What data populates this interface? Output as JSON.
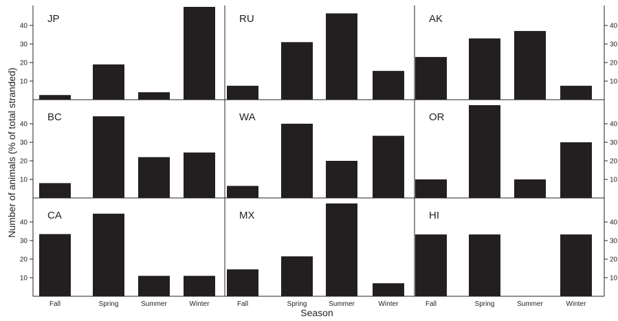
{
  "chart_data": {
    "type": "bar",
    "layout": "3x3 small multiples with shared axes",
    "xlabel": "Season",
    "ylabel": "Number of animals (% of total stranded)",
    "categories": [
      "Fall",
      "Spring",
      "Summer",
      "Winter"
    ],
    "ylim": [
      0,
      50
    ],
    "yticks": [
      10,
      20,
      30,
      40
    ],
    "grid": false,
    "bar_color": "#231f20",
    "series": [
      {
        "name": "JP",
        "values": [
          2.5,
          19,
          4,
          50
        ]
      },
      {
        "name": "RU",
        "values": [
          7.5,
          31,
          46.5,
          15.5
        ]
      },
      {
        "name": "AK",
        "values": [
          23,
          33,
          37,
          7.5
        ]
      },
      {
        "name": "BC",
        "values": [
          8,
          44,
          22,
          24.5
        ]
      },
      {
        "name": "WA",
        "values": [
          6.5,
          40,
          20,
          33.5
        ]
      },
      {
        "name": "OR",
        "values": [
          10,
          50,
          10,
          30
        ]
      },
      {
        "name": "CA",
        "values": [
          33.5,
          44.5,
          11,
          11
        ]
      },
      {
        "name": "MX",
        "values": [
          14.5,
          21.5,
          50,
          7
        ]
      },
      {
        "name": "HI",
        "values": [
          33.3,
          33.3,
          0,
          33.3
        ]
      }
    ]
  }
}
